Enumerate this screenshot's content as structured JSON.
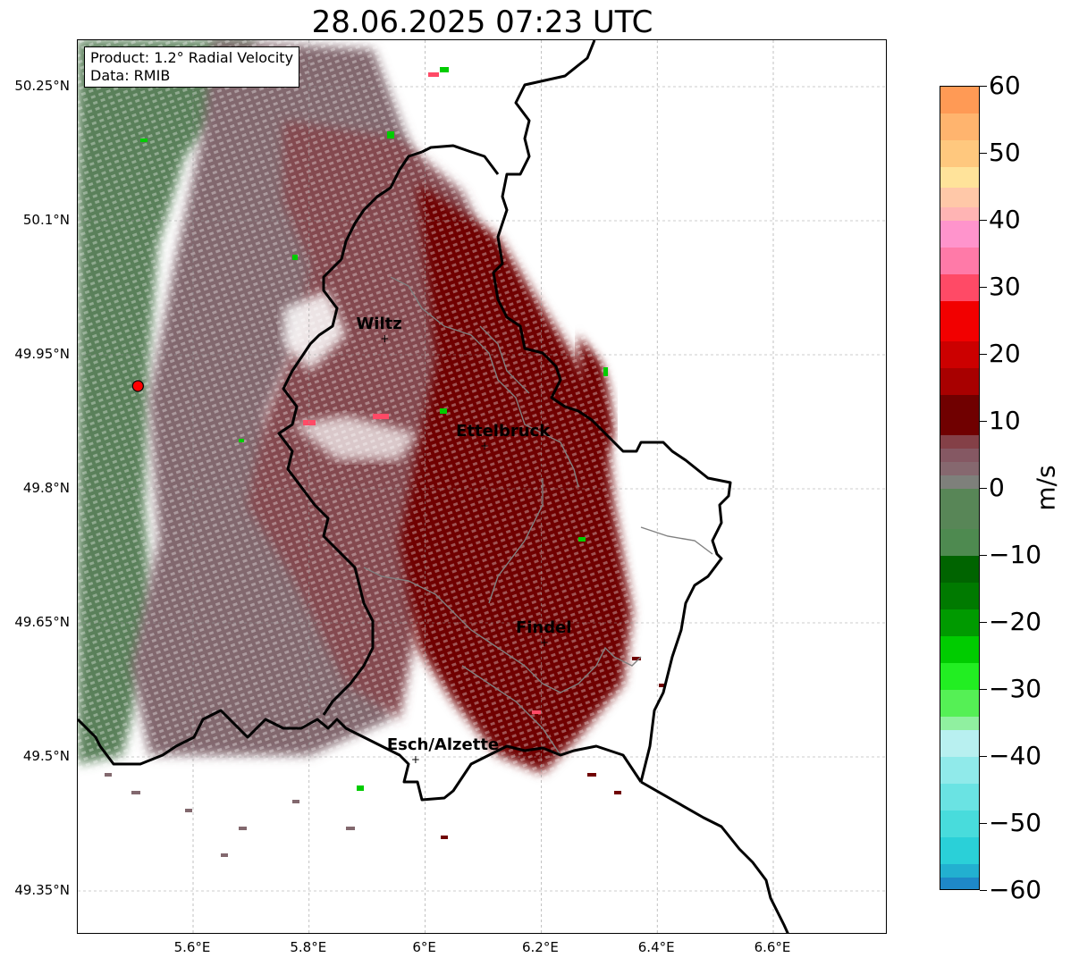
{
  "title": "28.06.2025 07:23 UTC",
  "info": {
    "product": "Product: 1.2° Radial Velocity",
    "source": "Data: RMIB"
  },
  "map": {
    "lon_range": [
      5.4,
      6.8
    ],
    "lat_range": [
      49.3,
      50.3
    ],
    "lat_ticks": [
      {
        "value": 50.25,
        "label": "50.25°N"
      },
      {
        "value": 50.1,
        "label": "50.1°N"
      },
      {
        "value": 49.95,
        "label": "49.95°N"
      },
      {
        "value": 49.8,
        "label": "49.8°N"
      },
      {
        "value": 49.65,
        "label": "49.65°N"
      },
      {
        "value": 49.5,
        "label": "49.5°N"
      },
      {
        "value": 49.35,
        "label": "49.35°N"
      }
    ],
    "lon_ticks": [
      {
        "value": 5.6,
        "label": "5.6°E"
      },
      {
        "value": 5.8,
        "label": "5.8°E"
      },
      {
        "value": 6.0,
        "label": "6°E"
      },
      {
        "value": 6.2,
        "label": "6.2°E"
      },
      {
        "value": 6.4,
        "label": "6.4°E"
      },
      {
        "value": 6.6,
        "label": "6.6°E"
      }
    ],
    "gridlines": true,
    "radar_site": {
      "lon": 5.505,
      "lat": 49.915,
      "color": "#ff0000"
    },
    "cities": [
      {
        "name": "Wiltz",
        "lon": 5.932,
        "lat": 49.967
      },
      {
        "name": "Ettelbruck",
        "lon": 6.104,
        "lat": 49.847
      },
      {
        "name": "Findel",
        "lon": 6.207,
        "lat": 49.627
      },
      {
        "name": "Esch/Alzette",
        "lon": 5.985,
        "lat": 49.496
      }
    ]
  },
  "colorbar": {
    "unit": "m/s",
    "range": [
      -60,
      60
    ],
    "ticks": [
      {
        "value": 60,
        "label": "60"
      },
      {
        "value": 50,
        "label": "50"
      },
      {
        "value": 40,
        "label": "40"
      },
      {
        "value": 30,
        "label": "30"
      },
      {
        "value": 20,
        "label": "20"
      },
      {
        "value": 10,
        "label": "10"
      },
      {
        "value": 0,
        "label": "0"
      },
      {
        "value": -10,
        "label": "−10"
      },
      {
        "value": -20,
        "label": "−20"
      },
      {
        "value": -30,
        "label": "−30"
      },
      {
        "value": -40,
        "label": "−40"
      },
      {
        "value": -50,
        "label": "−50"
      },
      {
        "value": -60,
        "label": "−60"
      }
    ],
    "stops": [
      {
        "from": 56,
        "to": 60,
        "color": "#ff9a55"
      },
      {
        "from": 52,
        "to": 56,
        "color": "#ffb46e"
      },
      {
        "from": 48,
        "to": 52,
        "color": "#ffc87e"
      },
      {
        "from": 45,
        "to": 48,
        "color": "#ffe39a"
      },
      {
        "from": 42,
        "to": 45,
        "color": "#ffc8a8"
      },
      {
        "from": 40,
        "to": 42,
        "color": "#ffb4b4"
      },
      {
        "from": 36,
        "to": 40,
        "color": "#ff94cc"
      },
      {
        "from": 32,
        "to": 36,
        "color": "#ff7aa8"
      },
      {
        "from": 28,
        "to": 32,
        "color": "#ff4a66"
      },
      {
        "from": 22,
        "to": 28,
        "color": "#f20000"
      },
      {
        "from": 18,
        "to": 22,
        "color": "#cc0000"
      },
      {
        "from": 14,
        "to": 18,
        "color": "#a80000"
      },
      {
        "from": 8,
        "to": 14,
        "color": "#700000"
      },
      {
        "from": 6,
        "to": 8,
        "color": "#844047"
      },
      {
        "from": 4,
        "to": 6,
        "color": "#855863"
      },
      {
        "from": 2,
        "to": 4,
        "color": "#86686f"
      },
      {
        "from": 0,
        "to": 2,
        "color": "#7e807b"
      },
      {
        "from": -3,
        "to": 0,
        "color": "#6e8a6a"
      },
      {
        "from": -6,
        "to": 0,
        "color": "#588657"
      },
      {
        "from": -10,
        "to": -6,
        "color": "#4e8a50"
      },
      {
        "from": -14,
        "to": -10,
        "color": "#006400"
      },
      {
        "from": -18,
        "to": -14,
        "color": "#007a00"
      },
      {
        "from": -22,
        "to": -18,
        "color": "#009a00"
      },
      {
        "from": -26,
        "to": -22,
        "color": "#00cc00"
      },
      {
        "from": -30,
        "to": -26,
        "color": "#22ee22"
      },
      {
        "from": -34,
        "to": -30,
        "color": "#55f055"
      },
      {
        "from": -36,
        "to": -34,
        "color": "#90f0a0"
      },
      {
        "from": -40,
        "to": -36,
        "color": "#b8f0f0"
      },
      {
        "from": -44,
        "to": -40,
        "color": "#90eaea"
      },
      {
        "from": -48,
        "to": -44,
        "color": "#6ae3e3"
      },
      {
        "from": -52,
        "to": -48,
        "color": "#48dcdc"
      },
      {
        "from": -56,
        "to": -52,
        "color": "#2ad0d8"
      },
      {
        "from": -58,
        "to": -56,
        "color": "#22b0d0"
      },
      {
        "from": -60,
        "to": -58,
        "color": "#1e88c8"
      }
    ]
  }
}
